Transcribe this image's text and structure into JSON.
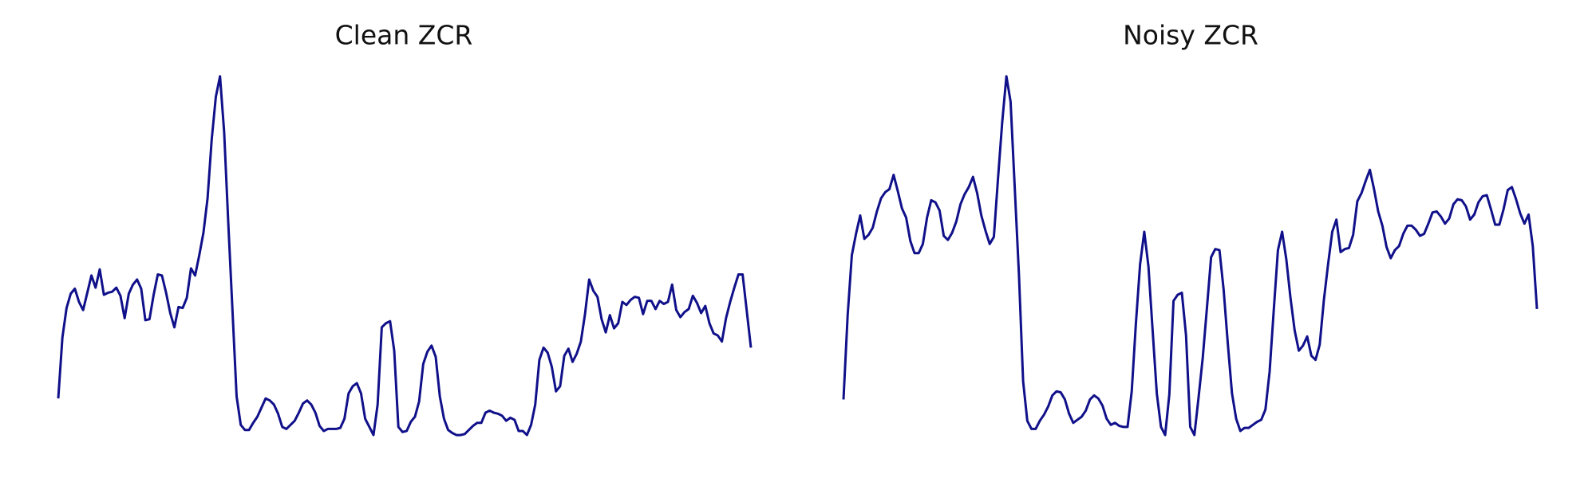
{
  "chart_data": [
    {
      "type": "line",
      "title": "Clean ZCR",
      "color": "#10108a",
      "ylim": [
        0.005,
        0.375
      ],
      "values": [
        0.048,
        0.108,
        0.137,
        0.151,
        0.156,
        0.143,
        0.135,
        0.152,
        0.169,
        0.157,
        0.175,
        0.15,
        0.152,
        0.153,
        0.157,
        0.149,
        0.127,
        0.151,
        0.16,
        0.165,
        0.156,
        0.125,
        0.126,
        0.15,
        0.17,
        0.169,
        0.152,
        0.132,
        0.118,
        0.138,
        0.137,
        0.147,
        0.176,
        0.169,
        0.189,
        0.211,
        0.245,
        0.303,
        0.345,
        0.365,
        0.31,
        0.22,
        0.135,
        0.05,
        0.022,
        0.017,
        0.017,
        0.024,
        0.03,
        0.039,
        0.048,
        0.046,
        0.042,
        0.033,
        0.02,
        0.018,
        0.022,
        0.026,
        0.034,
        0.043,
        0.046,
        0.042,
        0.034,
        0.021,
        0.016,
        0.018,
        0.018,
        0.018,
        0.019,
        0.028,
        0.053,
        0.06,
        0.063,
        0.053,
        0.028,
        0.02,
        0.012,
        0.042,
        0.118,
        0.122,
        0.124,
        0.095,
        0.02,
        0.015,
        0.016,
        0.025,
        0.03,
        0.045,
        0.082,
        0.094,
        0.1,
        0.089,
        0.05,
        0.028,
        0.017,
        0.014,
        0.012,
        0.012,
        0.013,
        0.017,
        0.021,
        0.024,
        0.024,
        0.034,
        0.036,
        0.034,
        0.033,
        0.031,
        0.026,
        0.029,
        0.027,
        0.016,
        0.016,
        0.012,
        0.022,
        0.042,
        0.086,
        0.098,
        0.093,
        0.079,
        0.055,
        0.06,
        0.09,
        0.097,
        0.084,
        0.092,
        0.104,
        0.131,
        0.165,
        0.154,
        0.148,
        0.126,
        0.113,
        0.13,
        0.117,
        0.122,
        0.143,
        0.14,
        0.145,
        0.148,
        0.147,
        0.131,
        0.144,
        0.144,
        0.136,
        0.144,
        0.141,
        0.143,
        0.16,
        0.135,
        0.128,
        0.133,
        0.136,
        0.149,
        0.142,
        0.132,
        0.139,
        0.122,
        0.112,
        0.11,
        0.104,
        0.127,
        0.143,
        0.157,
        0.17,
        0.17,
        0.134,
        0.098
      ]
    },
    {
      "type": "line",
      "title": "Noisy ZCR",
      "color": "#10108a",
      "ylim": [
        0.005,
        0.375
      ],
      "values": [
        0.047,
        0.13,
        0.189,
        0.21,
        0.228,
        0.205,
        0.209,
        0.216,
        0.232,
        0.245,
        0.251,
        0.254,
        0.268,
        0.252,
        0.235,
        0.226,
        0.203,
        0.191,
        0.191,
        0.2,
        0.226,
        0.243,
        0.241,
        0.233,
        0.208,
        0.204,
        0.211,
        0.222,
        0.239,
        0.249,
        0.256,
        0.266,
        0.25,
        0.228,
        0.213,
        0.2,
        0.207,
        0.265,
        0.32,
        0.365,
        0.34,
        0.255,
        0.17,
        0.065,
        0.026,
        0.018,
        0.018,
        0.026,
        0.032,
        0.04,
        0.051,
        0.055,
        0.054,
        0.047,
        0.033,
        0.024,
        0.027,
        0.03,
        0.036,
        0.047,
        0.051,
        0.048,
        0.041,
        0.028,
        0.022,
        0.024,
        0.021,
        0.02,
        0.02,
        0.055,
        0.122,
        0.18,
        0.212,
        0.178,
        0.115,
        0.053,
        0.02,
        0.012,
        0.052,
        0.144,
        0.15,
        0.152,
        0.11,
        0.02,
        0.012,
        0.049,
        0.088,
        0.137,
        0.187,
        0.195,
        0.194,
        0.155,
        0.102,
        0.053,
        0.028,
        0.016,
        0.019,
        0.019,
        0.022,
        0.025,
        0.027,
        0.037,
        0.074,
        0.135,
        0.194,
        0.212,
        0.185,
        0.147,
        0.115,
        0.095,
        0.1,
        0.109,
        0.09,
        0.086,
        0.101,
        0.145,
        0.18,
        0.212,
        0.224,
        0.192,
        0.195,
        0.196,
        0.209,
        0.242,
        0.25,
        0.262,
        0.273,
        0.254,
        0.232,
        0.218,
        0.197,
        0.186,
        0.194,
        0.198,
        0.21,
        0.218,
        0.218,
        0.214,
        0.208,
        0.21,
        0.22,
        0.231,
        0.232,
        0.227,
        0.22,
        0.225,
        0.239,
        0.244,
        0.243,
        0.237,
        0.224,
        0.229,
        0.241,
        0.247,
        0.248,
        0.234,
        0.219,
        0.219,
        0.234,
        0.253,
        0.256,
        0.244,
        0.23,
        0.22,
        0.229,
        0.198,
        0.136
      ]
    }
  ]
}
